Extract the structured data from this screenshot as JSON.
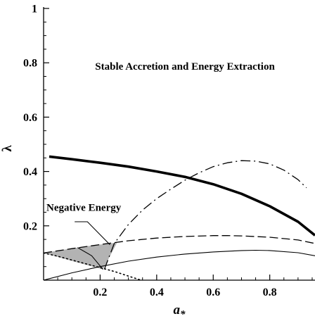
{
  "chart_data": {
    "type": "line",
    "xlabel": "a",
    "xlabel_sub": "*",
    "ylabel": "λ",
    "xlim": [
      0,
      0.96
    ],
    "ylim": [
      0,
      1
    ],
    "x_ticks": [
      {
        "v": 0.2,
        "label": "0.2"
      },
      {
        "v": 0.4,
        "label": "0.4"
      },
      {
        "v": 0.6,
        "label": "0.6"
      },
      {
        "v": 0.8,
        "label": "0.8"
      }
    ],
    "y_ticks": [
      {
        "v": 0.2,
        "label": "0.2"
      },
      {
        "v": 0.4,
        "label": "0.4"
      },
      {
        "v": 0.6,
        "label": "0.6"
      },
      {
        "v": 0.8,
        "label": "0.8"
      },
      {
        "v": 1.0,
        "label": "1"
      }
    ],
    "grid": false,
    "annotations": [
      {
        "text": "Stable Accretion and Energy Extraction",
        "x": 0.5,
        "y": 0.775
      },
      {
        "text": "Negative Energy",
        "x": 0.01,
        "y": 0.255
      }
    ],
    "pointer": [
      [
        0.11,
        0.215
      ],
      [
        0.155,
        0.215
      ],
      [
        0.235,
        0.13
      ]
    ],
    "shaded_region": [
      [
        0.0,
        0.1
      ],
      [
        0.06,
        0.11
      ],
      [
        0.12,
        0.12
      ],
      [
        0.18,
        0.129
      ],
      [
        0.26,
        0.138
      ],
      [
        0.21,
        0.04
      ],
      [
        0.12,
        0.065
      ],
      [
        0.0,
        0.1
      ]
    ],
    "series": [
      {
        "style": "thick",
        "x": [
          0.02,
          0.1,
          0.2,
          0.3,
          0.4,
          0.5,
          0.6,
          0.7,
          0.8,
          0.9,
          0.96
        ],
        "y": [
          0.455,
          0.445,
          0.432,
          0.418,
          0.4,
          0.38,
          0.353,
          0.318,
          0.272,
          0.215,
          0.165
        ]
      },
      {
        "style": "dash-dot",
        "x": [
          0.215,
          0.25,
          0.3,
          0.35,
          0.4,
          0.45,
          0.5,
          0.55,
          0.6,
          0.65,
          0.7,
          0.75,
          0.8,
          0.85,
          0.9,
          0.93
        ],
        "y": [
          0.04,
          0.135,
          0.205,
          0.258,
          0.3,
          0.335,
          0.368,
          0.395,
          0.418,
          0.432,
          0.44,
          0.438,
          0.428,
          0.405,
          0.37,
          0.34
        ]
      },
      {
        "style": "dashed",
        "x": [
          0.0,
          0.1,
          0.2,
          0.3,
          0.4,
          0.5,
          0.6,
          0.65,
          0.7,
          0.8,
          0.9,
          0.96
        ],
        "y": [
          0.1,
          0.116,
          0.131,
          0.145,
          0.155,
          0.161,
          0.164,
          0.164,
          0.163,
          0.158,
          0.148,
          0.135
        ]
      },
      {
        "style": "thin",
        "x": [
          0.0,
          0.1,
          0.2,
          0.3,
          0.4,
          0.5,
          0.6,
          0.7,
          0.75,
          0.8,
          0.9,
          0.96
        ],
        "y": [
          0.0,
          0.027,
          0.05,
          0.07,
          0.085,
          0.096,
          0.104,
          0.109,
          0.11,
          0.109,
          0.101,
          0.09
        ]
      },
      {
        "style": "dotted",
        "x": [
          0.0,
          0.05,
          0.1,
          0.15,
          0.2,
          0.25,
          0.3,
          0.345
        ],
        "y": [
          0.1,
          0.088,
          0.074,
          0.06,
          0.046,
          0.032,
          0.015,
          0.0
        ]
      },
      {
        "style": "pointer-line",
        "x": [
          0.12,
          0.17,
          0.21
        ],
        "y": [
          0.12,
          0.09,
          0.04
        ]
      }
    ]
  }
}
